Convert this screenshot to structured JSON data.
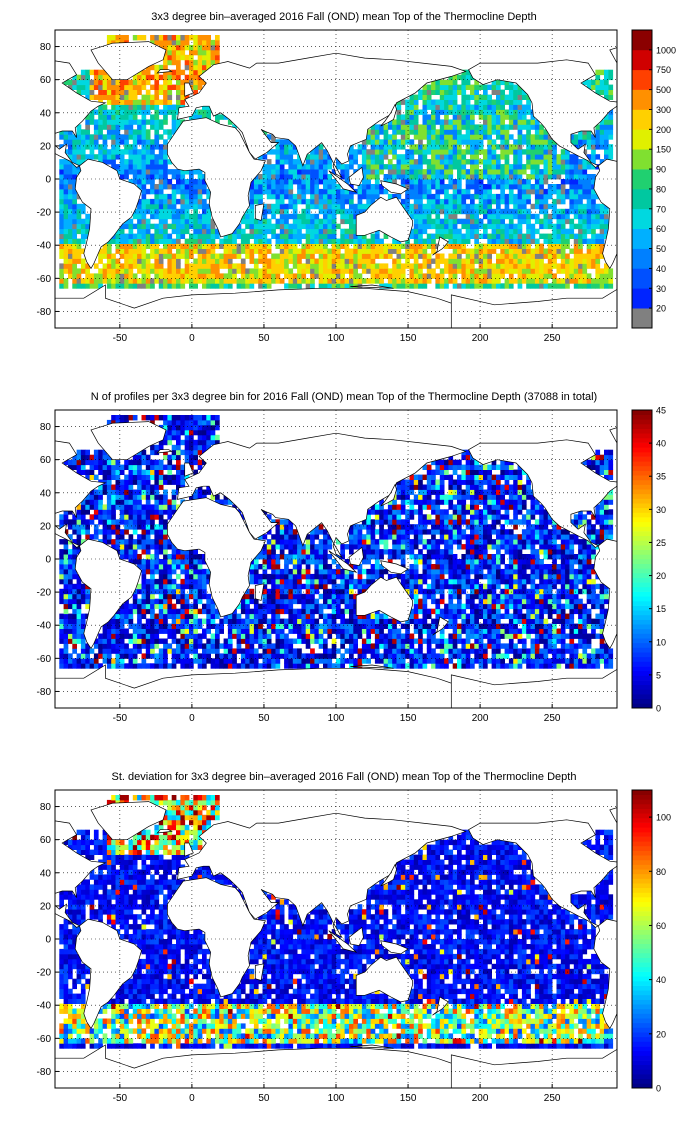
{
  "chart_data": [
    {
      "type": "heatmap",
      "title": "3x3 degree bin–averaged 2016 Fall (OND) mean Top of the Thermocline Depth",
      "xlabel": "",
      "ylabel": "",
      "xlim": [
        -95,
        295
      ],
      "ylim": [
        -90,
        90
      ],
      "x_ticks": [
        -50,
        0,
        50,
        100,
        150,
        200,
        250
      ],
      "y_ticks": [
        -80,
        -60,
        -40,
        -20,
        0,
        20,
        40,
        60,
        80
      ],
      "grid": true,
      "colorbar": {
        "kind": "categorical",
        "levels": [
          "20",
          "30",
          "40",
          "50",
          "60",
          "70",
          "80",
          "90",
          "150",
          "200",
          "300",
          "500",
          "750",
          "1000"
        ],
        "colors": [
          "#808080",
          "#0024ff",
          "#0050ff",
          "#0080ff",
          "#00b0ff",
          "#00d8e0",
          "#00c8a0",
          "#20d070",
          "#80e030",
          "#e0f000",
          "#ffd000",
          "#ff9000",
          "#ff4000",
          "#d00000",
          "#8b0000"
        ]
      },
      "field": "depth",
      "value_description": "Top of the Thermocline Depth per 3x3 degree bin",
      "typical_range": [
        20,
        1000
      ],
      "annotations": [
        "world continents outline"
      ]
    },
    {
      "type": "heatmap",
      "title": "N of profiles per 3x3 degree bin for 2016 Fall (OND) mean Top of the Thermocline Depth  (37088 in total)",
      "xlabel": "",
      "ylabel": "",
      "xlim": [
        -95,
        295
      ],
      "ylim": [
        -90,
        90
      ],
      "x_ticks": [
        -50,
        0,
        50,
        100,
        150,
        200,
        250
      ],
      "y_ticks": [
        -80,
        -60,
        -40,
        -20,
        0,
        20,
        40,
        60,
        80
      ],
      "grid": true,
      "colorbar": {
        "kind": "continuous",
        "min": 0,
        "max": 45,
        "ticks": [
          0,
          5,
          10,
          15,
          20,
          25,
          30,
          35,
          40,
          45
        ]
      },
      "field": "count",
      "total_profiles": 37088,
      "typical_range": [
        0,
        45
      ]
    },
    {
      "type": "heatmap",
      "title": "St. deviation for 3x3 degree bin–averaged 2016 Fall (OND) mean Top of the Thermocline Depth",
      "xlabel": "",
      "ylabel": "",
      "xlim": [
        -95,
        295
      ],
      "ylim": [
        -90,
        90
      ],
      "x_ticks": [
        -50,
        0,
        50,
        100,
        150,
        200,
        250
      ],
      "y_ticks": [
        -80,
        -60,
        -40,
        -20,
        0,
        20,
        40,
        60,
        80
      ],
      "grid": true,
      "colorbar": {
        "kind": "continuous",
        "min": 0,
        "max": 110,
        "ticks": [
          0,
          20,
          40,
          60,
          80,
          100
        ]
      },
      "field": "std",
      "typical_range": [
        0,
        110
      ]
    }
  ]
}
